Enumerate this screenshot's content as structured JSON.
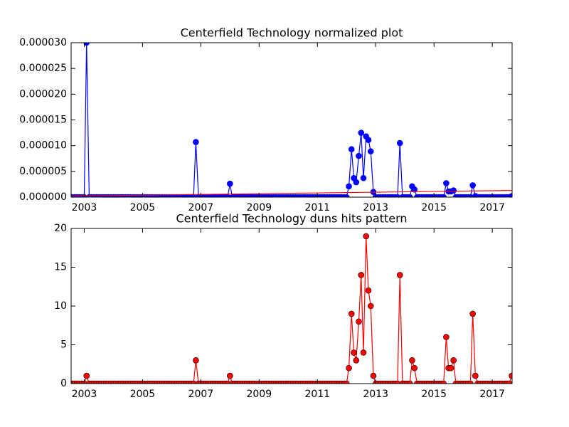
{
  "chart_data": [
    {
      "type": "line",
      "title": "Centerfield Technology normalized plot",
      "xlim": [
        2002.55,
        2017.68
      ],
      "xticks": [
        2003,
        2005,
        2007,
        2009,
        2011,
        2013,
        2015,
        2017
      ],
      "ylim": [
        0,
        3e-05
      ],
      "yticks": [
        {
          "value": 0,
          "label": "0.000000"
        },
        {
          "value": 5e-06,
          "label": "0.000005"
        },
        {
          "value": 1e-05,
          "label": "0.000010"
        },
        {
          "value": 1.5e-05,
          "label": "0.000015"
        },
        {
          "value": 2e-05,
          "label": "0.000020"
        },
        {
          "value": 2.5e-05,
          "label": "0.000025"
        },
        {
          "value": 3e-05,
          "label": "0.000030"
        }
      ],
      "x": [
        2002.58,
        2002.67,
        2002.75,
        2002.83,
        2002.92,
        2003,
        2003.08,
        2003.17,
        2003.25,
        2003.33,
        2003.42,
        2003.5,
        2003.58,
        2003.67,
        2003.75,
        2003.83,
        2003.92,
        2004,
        2004.08,
        2004.17,
        2004.25,
        2004.33,
        2004.42,
        2004.5,
        2004.58,
        2004.67,
        2004.75,
        2004.83,
        2004.92,
        2005,
        2005.08,
        2005.17,
        2005.25,
        2005.33,
        2005.42,
        2005.5,
        2005.58,
        2005.67,
        2005.75,
        2005.83,
        2005.92,
        2006,
        2006.08,
        2006.17,
        2006.25,
        2006.33,
        2006.42,
        2006.5,
        2006.58,
        2006.67,
        2006.75,
        2006.83,
        2006.92,
        2007,
        2007.08,
        2007.17,
        2007.25,
        2007.33,
        2007.42,
        2007.5,
        2007.58,
        2007.67,
        2007.75,
        2007.83,
        2007.92,
        2008,
        2008.08,
        2008.17,
        2008.25,
        2008.33,
        2008.42,
        2008.5,
        2008.58,
        2008.67,
        2008.75,
        2008.83,
        2008.92,
        2009,
        2009.08,
        2009.17,
        2009.25,
        2009.33,
        2009.42,
        2009.5,
        2009.58,
        2009.67,
        2009.75,
        2009.83,
        2009.92,
        2010,
        2010.08,
        2010.17,
        2010.25,
        2010.33,
        2010.42,
        2010.5,
        2010.58,
        2010.67,
        2010.75,
        2010.83,
        2010.92,
        2011,
        2011.08,
        2011.17,
        2011.25,
        2011.33,
        2011.42,
        2011.5,
        2011.58,
        2011.67,
        2011.75,
        2011.83,
        2011.92,
        2012,
        2012.08,
        2012.17,
        2012.25,
        2012.33,
        2012.42,
        2012.5,
        2012.58,
        2012.67,
        2012.75,
        2012.83,
        2012.92,
        2013,
        2013.08,
        2013.17,
        2013.25,
        2013.33,
        2013.42,
        2013.5,
        2013.58,
        2013.67,
        2013.75,
        2013.83,
        2013.92,
        2014,
        2014.08,
        2014.17,
        2014.25,
        2014.33,
        2014.42,
        2014.5,
        2014.58,
        2014.67,
        2014.75,
        2014.83,
        2014.92,
        2015,
        2015.08,
        2015.17,
        2015.25,
        2015.33,
        2015.42,
        2015.5,
        2015.58,
        2015.67,
        2015.75,
        2015.83,
        2015.92,
        2016,
        2016.08,
        2016.17,
        2016.25,
        2016.33,
        2016.42,
        2016.5,
        2016.58,
        2016.67,
        2016.75,
        2016.83,
        2016.92,
        2017,
        2017.08,
        2017.17,
        2017.25,
        2017.33,
        2017.42,
        2017.5,
        2017.58,
        2017.67
      ],
      "series": [
        {
          "color": "#0000ff",
          "values": [
            0,
            0,
            0,
            0,
            0,
            0,
            3e-05,
            0,
            0,
            0,
            0,
            0,
            0,
            0,
            0,
            0,
            0,
            0,
            0,
            0,
            0,
            0,
            0,
            0,
            0,
            0,
            0,
            0,
            0,
            0,
            0,
            0,
            0,
            0,
            0,
            0,
            0,
            0,
            0,
            0,
            0,
            0,
            0,
            0,
            0,
            0,
            0,
            0,
            0,
            0,
            0,
            1.07e-05,
            0,
            0,
            0,
            0,
            0,
            0,
            0,
            0,
            0,
            0,
            0,
            0,
            0,
            2.6e-06,
            0,
            0,
            0,
            0,
            0,
            0,
            0,
            0,
            0,
            0,
            0,
            0,
            0,
            0,
            0,
            0,
            0,
            0,
            0,
            0,
            0,
            0,
            0,
            0,
            0,
            0,
            0,
            0,
            0,
            0,
            0,
            0,
            0,
            0,
            0,
            0,
            0,
            0,
            0,
            0,
            0,
            0,
            0,
            0,
            0,
            0,
            0,
            0,
            2.1e-06,
            9.3e-06,
            3.7e-06,
            2.9e-06,
            8e-06,
            1.25e-05,
            3.7e-06,
            1.18e-05,
            1.11e-05,
            8.9e-06,
            1e-06,
            0,
            0,
            0,
            0,
            0,
            0,
            0,
            0,
            0,
            0,
            1.05e-05,
            0,
            0,
            0,
            0,
            2.1e-06,
            1.5e-06,
            0,
            0,
            0,
            0,
            0,
            0,
            0,
            0,
            0,
            0,
            0,
            0,
            2.7e-06,
            1.1e-06,
            1.1e-06,
            1.3e-06,
            0,
            0,
            0,
            0,
            0,
            0,
            0,
            2.3e-06,
            2e-07,
            0,
            0,
            0,
            0,
            0,
            0,
            0,
            0,
            0,
            0,
            0,
            0,
            0,
            0,
            2e-07
          ]
        }
      ],
      "trend": {
        "color": "#ff0000",
        "x": [
          2002.55,
          2017.68
        ],
        "values": [
          2e-07,
          1.3e-06
        ]
      }
    },
    {
      "type": "line",
      "title": "Centerfield Technology duns hits pattern",
      "xlim": [
        2002.55,
        2017.68
      ],
      "xticks": [
        2003,
        2005,
        2007,
        2009,
        2011,
        2013,
        2015,
        2017
      ],
      "ylim": [
        0,
        20
      ],
      "yticks": [
        0,
        5,
        10,
        15,
        20
      ],
      "x": [
        2002.58,
        2002.67,
        2002.75,
        2002.83,
        2002.92,
        2003,
        2003.08,
        2003.17,
        2003.25,
        2003.33,
        2003.42,
        2003.5,
        2003.58,
        2003.67,
        2003.75,
        2003.83,
        2003.92,
        2004,
        2004.08,
        2004.17,
        2004.25,
        2004.33,
        2004.42,
        2004.5,
        2004.58,
        2004.67,
        2004.75,
        2004.83,
        2004.92,
        2005,
        2005.08,
        2005.17,
        2005.25,
        2005.33,
        2005.42,
        2005.5,
        2005.58,
        2005.67,
        2005.75,
        2005.83,
        2005.92,
        2006,
        2006.08,
        2006.17,
        2006.25,
        2006.33,
        2006.42,
        2006.5,
        2006.58,
        2006.67,
        2006.75,
        2006.83,
        2006.92,
        2007,
        2007.08,
        2007.17,
        2007.25,
        2007.33,
        2007.42,
        2007.5,
        2007.58,
        2007.67,
        2007.75,
        2007.83,
        2007.92,
        2008,
        2008.08,
        2008.17,
        2008.25,
        2008.33,
        2008.42,
        2008.5,
        2008.58,
        2008.67,
        2008.75,
        2008.83,
        2008.92,
        2009,
        2009.08,
        2009.17,
        2009.25,
        2009.33,
        2009.42,
        2009.5,
        2009.58,
        2009.67,
        2009.75,
        2009.83,
        2009.92,
        2010,
        2010.08,
        2010.17,
        2010.25,
        2010.33,
        2010.42,
        2010.5,
        2010.58,
        2010.67,
        2010.75,
        2010.83,
        2010.92,
        2011,
        2011.08,
        2011.17,
        2011.25,
        2011.33,
        2011.42,
        2011.5,
        2011.58,
        2011.67,
        2011.75,
        2011.83,
        2011.92,
        2012,
        2012.08,
        2012.17,
        2012.25,
        2012.33,
        2012.42,
        2012.5,
        2012.58,
        2012.67,
        2012.75,
        2012.83,
        2012.92,
        2013,
        2013.08,
        2013.17,
        2013.25,
        2013.33,
        2013.42,
        2013.5,
        2013.58,
        2013.67,
        2013.75,
        2013.83,
        2013.92,
        2014,
        2014.08,
        2014.17,
        2014.25,
        2014.33,
        2014.42,
        2014.5,
        2014.58,
        2014.67,
        2014.75,
        2014.83,
        2014.92,
        2015,
        2015.08,
        2015.17,
        2015.25,
        2015.33,
        2015.42,
        2015.5,
        2015.58,
        2015.67,
        2015.75,
        2015.83,
        2015.92,
        2016,
        2016.08,
        2016.17,
        2016.25,
        2016.33,
        2016.42,
        2016.5,
        2016.58,
        2016.67,
        2016.75,
        2016.83,
        2016.92,
        2017,
        2017.08,
        2017.17,
        2017.25,
        2017.33,
        2017.42,
        2017.5,
        2017.58,
        2017.67
      ],
      "series": [
        {
          "color": "#ff0000",
          "values": [
            0,
            0,
            0,
            0,
            0,
            0,
            1,
            0,
            0,
            0,
            0,
            0,
            0,
            0,
            0,
            0,
            0,
            0,
            0,
            0,
            0,
            0,
            0,
            0,
            0,
            0,
            0,
            0,
            0,
            0,
            0,
            0,
            0,
            0,
            0,
            0,
            0,
            0,
            0,
            0,
            0,
            0,
            0,
            0,
            0,
            0,
            0,
            0,
            0,
            0,
            0,
            3,
            0,
            0,
            0,
            0,
            0,
            0,
            0,
            0,
            0,
            0,
            0,
            0,
            0,
            1,
            0,
            0,
            0,
            0,
            0,
            0,
            0,
            0,
            0,
            0,
            0,
            0,
            0,
            0,
            0,
            0,
            0,
            0,
            0,
            0,
            0,
            0,
            0,
            0,
            0,
            0,
            0,
            0,
            0,
            0,
            0,
            0,
            0,
            0,
            0,
            0,
            0,
            0,
            0,
            0,
            0,
            0,
            0,
            0,
            0,
            0,
            0,
            0,
            2,
            9,
            4,
            3,
            8,
            14,
            4,
            19,
            12,
            10,
            1,
            0,
            0,
            0,
            0,
            0,
            0,
            0,
            0,
            0,
            0,
            14,
            0,
            0,
            0,
            0,
            3,
            2,
            0,
            0,
            0,
            0,
            0,
            0,
            0,
            0,
            0,
            0,
            0,
            0,
            6,
            2,
            2,
            3,
            0,
            0,
            0,
            0,
            0,
            0,
            0,
            9,
            1,
            0,
            0,
            0,
            0,
            0,
            0,
            0,
            0,
            0,
            0,
            0,
            0,
            0,
            0,
            1
          ]
        }
      ]
    }
  ]
}
